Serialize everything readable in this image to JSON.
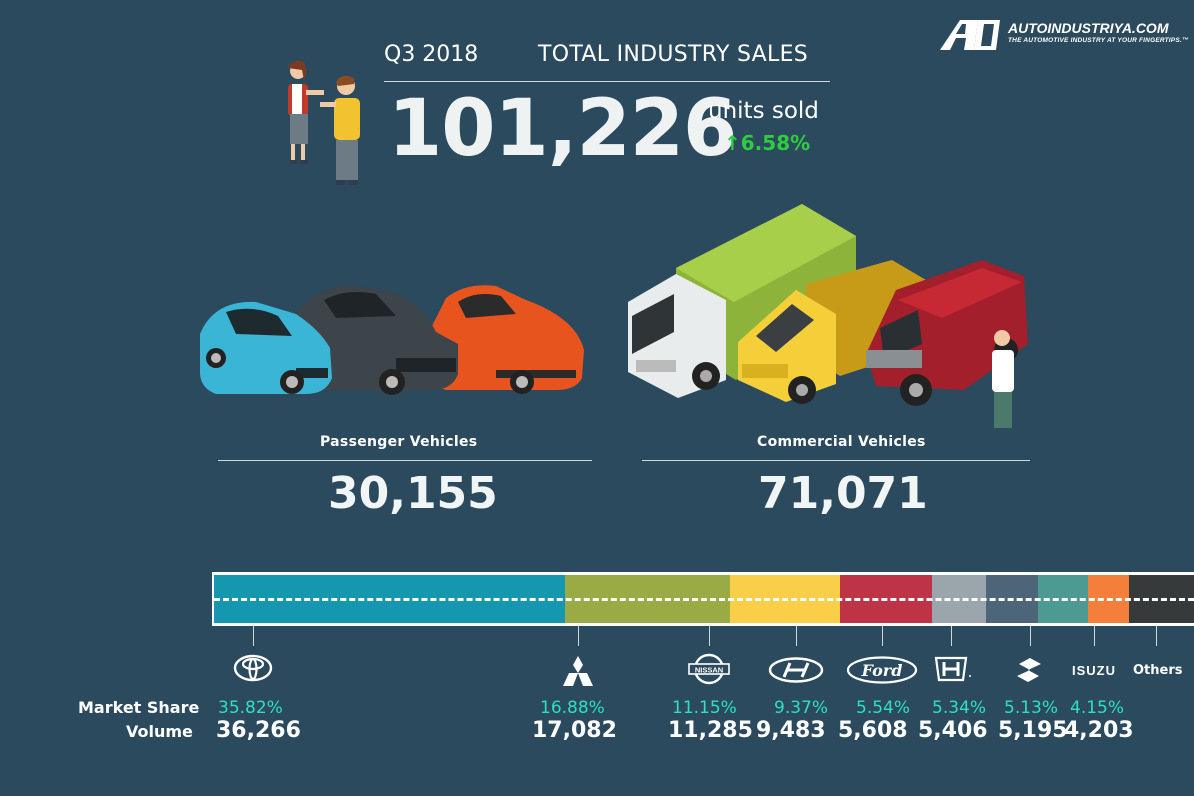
{
  "brand": {
    "site": "AUTOINDUSTRIYA.COM",
    "tagline": "THE AUTOMOTIVE INDUSTRY AT YOUR FINGERTIPS.™"
  },
  "header": {
    "quarter": "Q3 2018",
    "title": "TOTAL INDUSTRY SALES",
    "total_units": "101,226",
    "units_label": "units sold",
    "growth": "6.58%"
  },
  "categories": {
    "passenger_label": "Passenger Vehicles",
    "passenger_value": "30,155",
    "commercial_label": "Commercial Vehicles",
    "commercial_value": "71,071"
  },
  "labels": {
    "market_share": "Market Share",
    "volume": "Volume",
    "isuzu": "ISUZU",
    "others": "Others"
  },
  "colors": {
    "background": "#2b4a5e",
    "growth": "#2ecc40",
    "share_text": "#2de0c0"
  },
  "chart_data": {
    "type": "bar",
    "orientation": "horizontal-stacked",
    "categories": [
      "Toyota",
      "Mitsubishi",
      "Nissan",
      "Hyundai",
      "Ford",
      "Honda",
      "Suzuki",
      "Isuzu",
      "Others"
    ],
    "values": [
      35.82,
      16.88,
      11.15,
      9.37,
      5.54,
      5.34,
      5.13,
      4.15,
      null
    ],
    "volumes": [
      36266,
      17082,
      11285,
      9483,
      5608,
      5406,
      5195,
      4203,
      null
    ],
    "share_labels": [
      "35.82%",
      "16.88%",
      "11.15%",
      "9.37%",
      "5.54%",
      "5.34%",
      "5.13%",
      "4.15%",
      ""
    ],
    "volume_labels": [
      "36,266",
      "17,082",
      "11,285",
      "9,483",
      "5,608",
      "5,406",
      "5,195",
      "4,203",
      ""
    ],
    "segment_colors": [
      "#1597b0",
      "#9aab45",
      "#f9cf4a",
      "#be3446",
      "#9aa6ab",
      "#4c6578",
      "#4d9a93",
      "#f47f3a",
      "#363a3b"
    ],
    "others_share": 6.62
  }
}
